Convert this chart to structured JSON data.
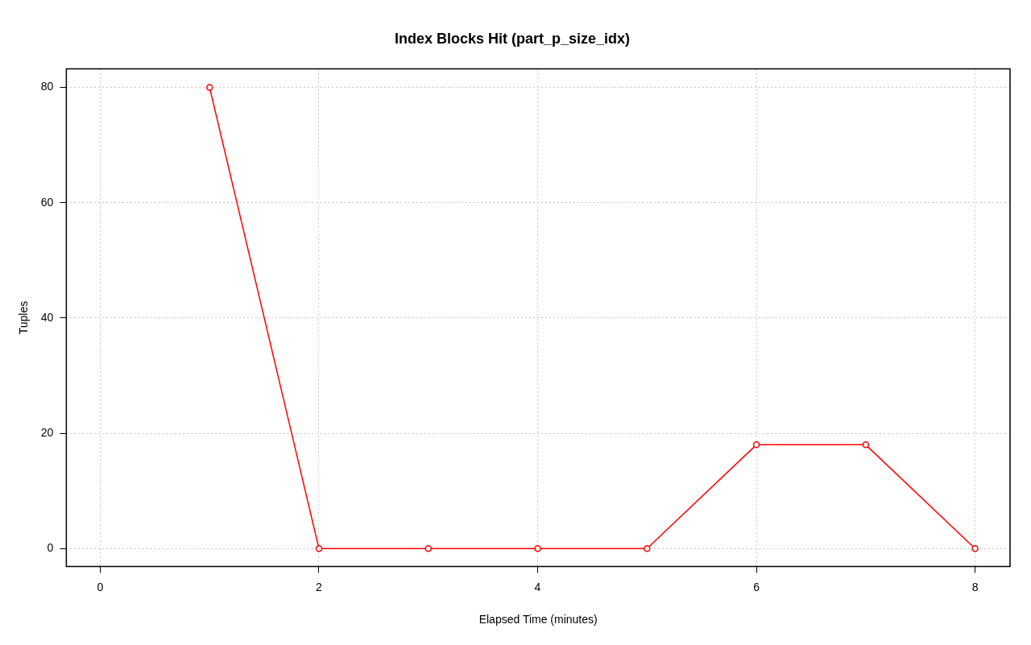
{
  "chart_data": {
    "type": "line",
    "title": "Index Blocks Hit (part_p_size_idx)",
    "xlabel": "Elapsed Time (minutes)",
    "ylabel": "Tuples",
    "x": [
      1,
      2,
      3,
      4,
      5,
      6,
      7,
      8
    ],
    "series": [
      {
        "color": "#ff0000",
        "values": [
          80,
          0,
          0,
          0,
          0,
          18,
          18,
          0
        ]
      }
    ],
    "xlim": [
      -0.31,
      8.32
    ],
    "xticks": [
      0,
      2,
      4,
      6,
      8
    ],
    "ylim": [
      -3.1,
      83.2
    ],
    "yticks": [
      0,
      20,
      40,
      60,
      80
    ],
    "grid": true,
    "legend": false,
    "marker": "circle",
    "line_style": "solid"
  }
}
